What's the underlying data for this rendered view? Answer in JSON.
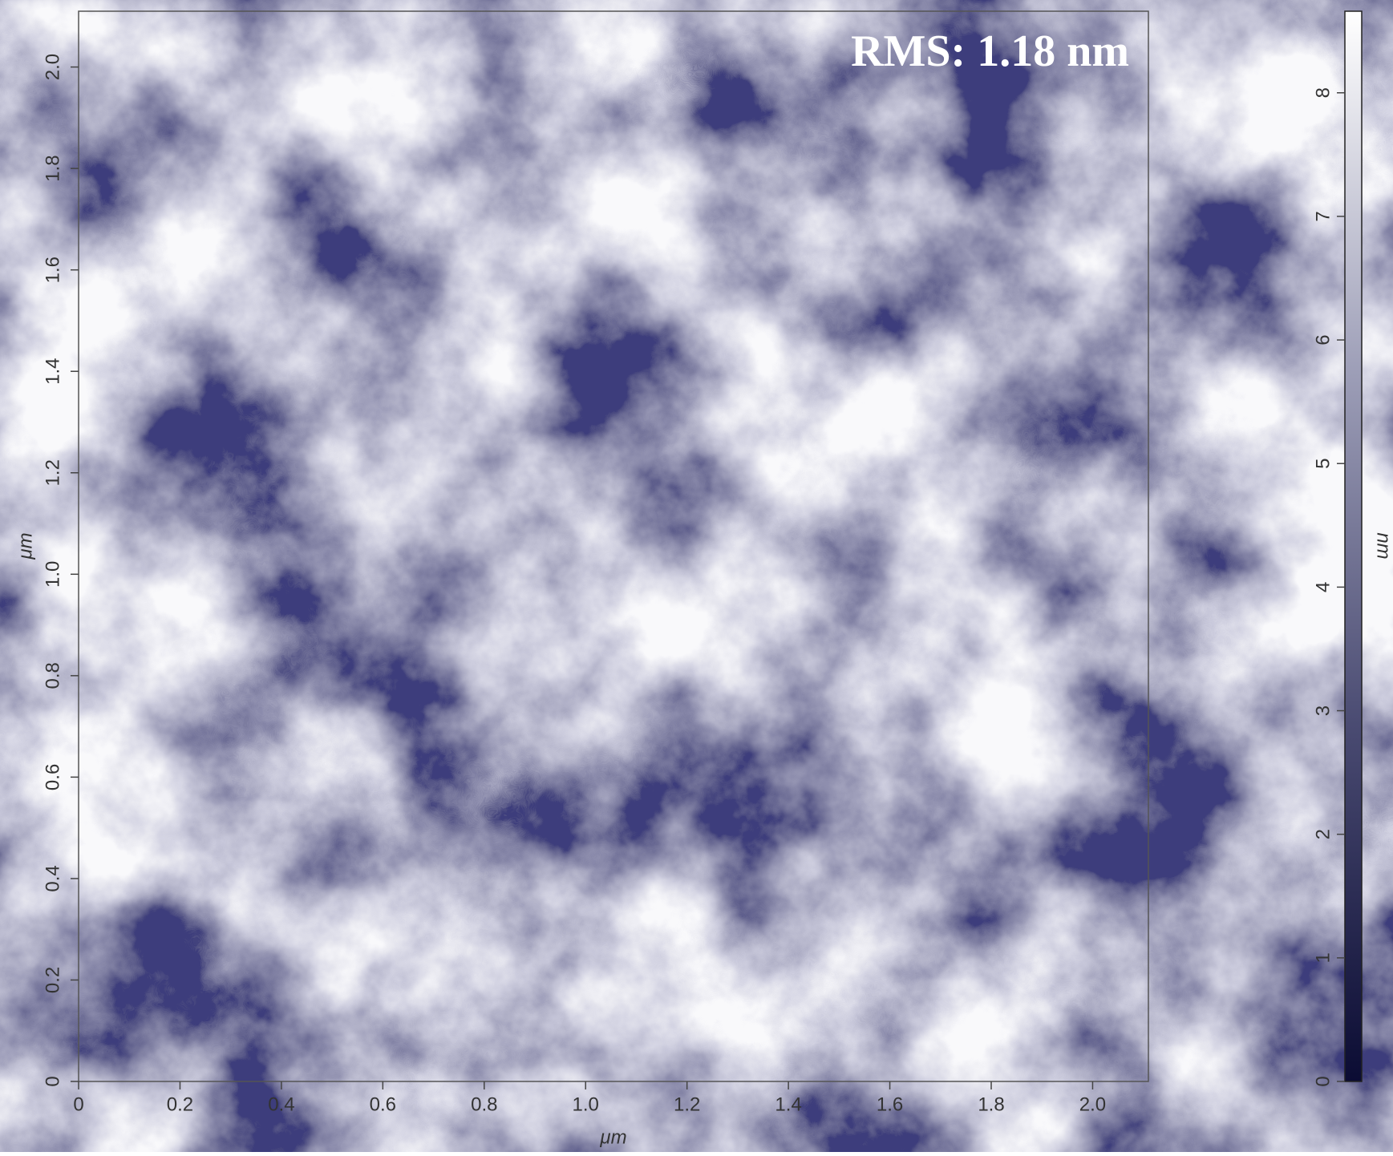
{
  "chart_data": {
    "type": "heatmap-image",
    "annotation": "RMS: 1.18 nm",
    "x_label": "μm",
    "y_label": "μm",
    "colorbar_label": "nm",
    "xlim": [
      0,
      2.11
    ],
    "ylim": [
      0,
      2.11
    ],
    "xticks": [
      0,
      0.2,
      0.4,
      0.6,
      0.8,
      {
        "value": 1,
        "label": "1.0"
      },
      1.2,
      1.4,
      1.6,
      1.8,
      {
        "value": 2,
        "label": "2.0"
      }
    ],
    "yticks": [
      0,
      0.2,
      0.4,
      0.6,
      0.8,
      {
        "value": 1,
        "label": "1.0"
      },
      1.2,
      1.4,
      1.6,
      1.8,
      {
        "value": 2,
        "label": "2.0"
      }
    ],
    "colorbar_lim": [
      0,
      8.66
    ],
    "colorbar_ticks": [
      0,
      1,
      2,
      3,
      4,
      5,
      6,
      7,
      8
    ],
    "colormap": [
      "#0b0c33",
      "#4a4b72",
      "#9e9fb8",
      "#ffffff"
    ]
  }
}
